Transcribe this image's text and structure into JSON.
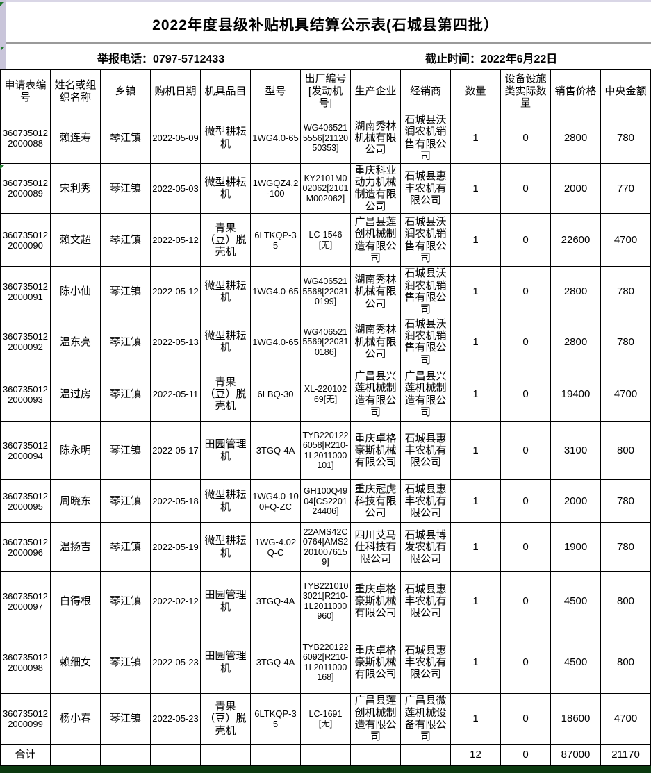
{
  "page": {
    "title": "2022年度县级补贴机具结算公示表(石城县第四批）",
    "info": {
      "phone_label": "举报电话：",
      "phone": "0797-5712433",
      "deadline_label": "截止时间：",
      "deadline": "2022年6月22日"
    }
  },
  "table": {
    "columns": [
      "申请表编号",
      "姓名或组织名称",
      "乡镇",
      "购机日期",
      "机具品目",
      "型号",
      "出厂编号[发动机号]",
      "生产企业",
      "经销商",
      "数量",
      "设备设施类实际数量",
      "销售价格",
      "中央金额"
    ],
    "rows": [
      [
        "3607350122000088",
        "赖连寿",
        "琴江镇",
        "2022-05-09",
        "微型耕耘机",
        "1WG4.0-65",
        "WG4065215556[2112050353]",
        "湖南秀林机械有限公司",
        "石城县沃润农机销售有限公司",
        "1",
        "0",
        "2800",
        "780"
      ],
      [
        "3607350122000089",
        "宋利秀",
        "琴江镇",
        "2022-05-03",
        "微型耕耘机",
        "1WGQZ4.2-100",
        "KY2101M002062[2101M002062]",
        "重庆科业动力机械制造有限公司",
        "石城县惠丰农机有限公司",
        "1",
        "0",
        "2000",
        "770"
      ],
      [
        "3607350122000090",
        "赖文超",
        "琴江镇",
        "2022-05-12",
        "青果（豆）脱壳机",
        "6LTKQP-35",
        "LC-1546[无]",
        "广昌县莲创机械制造有限公司",
        "石城县沃润农机销售有限公司",
        "1",
        "0",
        "22600",
        "4700"
      ],
      [
        "3607350122000091",
        "陈小仙",
        "琴江镇",
        "2022-05-12",
        "微型耕耘机",
        "1WG4.0-65",
        "WG4065215568[220310199]",
        "湖南秀林机械有限公司",
        "石城县沃润农机销售有限公司",
        "1",
        "0",
        "2800",
        "780"
      ],
      [
        "3607350122000092",
        "温东亮",
        "琴江镇",
        "2022-05-13",
        "微型耕耘机",
        "1WG4.0-65",
        "WG4065215569[220310186]",
        "湖南秀林机械有限公司",
        "石城县沃润农机销售有限公司",
        "1",
        "0",
        "2800",
        "780"
      ],
      [
        "3607350122000093",
        "温过房",
        "琴江镇",
        "2022-05-11",
        "青果（豆）脱壳机",
        "6LBQ-30",
        "XL-22010269[无]",
        "广昌县兴莲机械制造有限公司",
        "广昌县兴莲机械制造有限公司",
        "1",
        "0",
        "19400",
        "4700"
      ],
      [
        "3607350122000094",
        "陈永明",
        "琴江镇",
        "2022-05-17",
        "田园管理机",
        "3TGQ-4A",
        "TYB2201226058[R210-1L2011000101]",
        "重庆卓格豪斯机械有限公司",
        "石城县惠丰农机有限公司",
        "1",
        "0",
        "3100",
        "800"
      ],
      [
        "3607350122000095",
        "周晓东",
        "琴江镇",
        "2022-05-18",
        "微型耕耘机",
        "1WG4.0-100FQ-ZC",
        "GH100Q4904[CS220124406]",
        "重庆冠虎科技有限公司",
        "石城县惠丰农机有限公司",
        "1",
        "0",
        "2000",
        "780"
      ],
      [
        "3607350122000096",
        "温扬吉",
        "琴江镇",
        "2022-05-19",
        "微型耕耘机",
        "1WG-4.02Q-C",
        "22AMS42C0764[AMS22010076159]",
        "四川艾马仕科技有限公司",
        "石城县博发农机有限公司",
        "1",
        "0",
        "1900",
        "780"
      ],
      [
        "3607350122000097",
        "白得根",
        "琴江镇",
        "2022-02-12",
        "田园管理机",
        "3TGQ-4A",
        "TYB2210103021[R210-1L2011000960]",
        "重庆卓格豪斯机械有限公司",
        "石城县惠丰农机有限公司",
        "1",
        "0",
        "4500",
        "800"
      ],
      [
        "3607350122000098",
        "赖细女",
        "琴江镇",
        "2022-05-23",
        "田园管理机",
        "3TGQ-4A",
        "TYB2201226092[R210-1L2011000168]",
        "重庆卓格豪斯机械有限公司",
        "石城县惠丰农机有限公司",
        "1",
        "0",
        "4500",
        "800"
      ],
      [
        "3607350122000099",
        "杨小春",
        "琴江镇",
        "2022-05-23",
        "青果（豆）脱壳机",
        "6LTKQP-35",
        "LC-1691[无]",
        "广昌县莲创机械制造有限公司",
        "广昌县微莲机械设备有限公司",
        "1",
        "0",
        "18600",
        "4700"
      ]
    ],
    "total_row": [
      "合计",
      "",
      "",
      "",
      "",
      "",
      "",
      "",
      "",
      "12",
      "0",
      "87000",
      "21170"
    ]
  },
  "colors": {
    "grid_line": "#000000",
    "side_strip": "#c9c5da",
    "bottom_strip": "#0c3a10",
    "cell_flag_green": "#1f7a2d",
    "title_divider": "#9a9a9a"
  }
}
